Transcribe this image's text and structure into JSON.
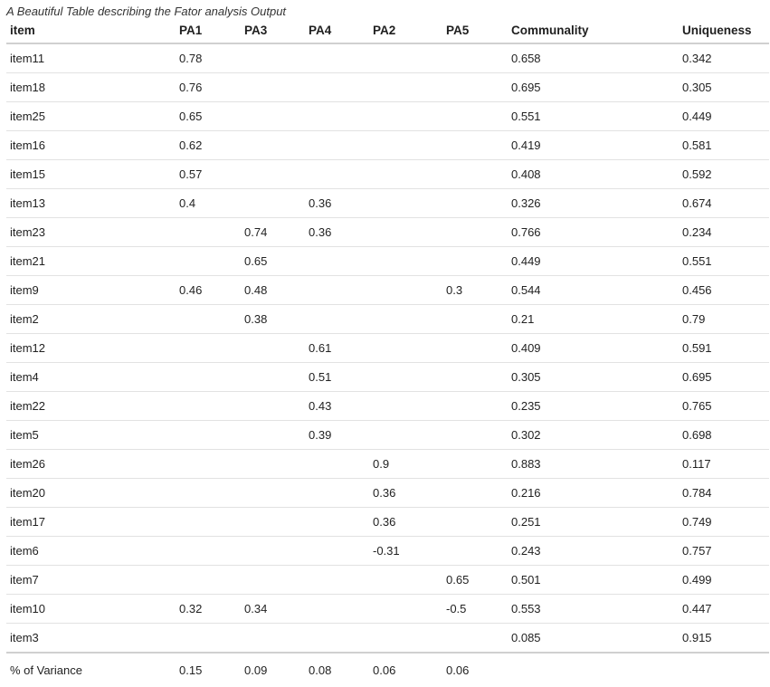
{
  "title": "A Beautiful Table describing the Fator analysis Output",
  "colors": {
    "background": "#ffffff",
    "text": "#222222",
    "header_rule": "#d0d0d0",
    "row_rule": "#e2e2e2"
  },
  "chart_data": {
    "type": "table",
    "title": "A Beautiful Table describing the Fator analysis Output",
    "columns": [
      "item",
      "PA1",
      "PA3",
      "PA4",
      "PA2",
      "PA5",
      "Communality",
      "Uniqueness"
    ],
    "rows": [
      [
        "item11",
        "0.78",
        "",
        "",
        "",
        "",
        "0.658",
        "0.342"
      ],
      [
        "item18",
        "0.76",
        "",
        "",
        "",
        "",
        "0.695",
        "0.305"
      ],
      [
        "item25",
        "0.65",
        "",
        "",
        "",
        "",
        "0.551",
        "0.449"
      ],
      [
        "item16",
        "0.62",
        "",
        "",
        "",
        "",
        "0.419",
        "0.581"
      ],
      [
        "item15",
        "0.57",
        "",
        "",
        "",
        "",
        "0.408",
        "0.592"
      ],
      [
        "item13",
        "0.4",
        "",
        "0.36",
        "",
        "",
        "0.326",
        "0.674"
      ],
      [
        "item23",
        "",
        "0.74",
        "0.36",
        "",
        "",
        "0.766",
        "0.234"
      ],
      [
        "item21",
        "",
        "0.65",
        "",
        "",
        "",
        "0.449",
        "0.551"
      ],
      [
        "item9",
        "0.46",
        "0.48",
        "",
        "",
        "0.3",
        "0.544",
        "0.456"
      ],
      [
        "item2",
        "",
        "0.38",
        "",
        "",
        "",
        "0.21",
        "0.79"
      ],
      [
        "item12",
        "",
        "",
        "0.61",
        "",
        "",
        "0.409",
        "0.591"
      ],
      [
        "item4",
        "",
        "",
        "0.51",
        "",
        "",
        "0.305",
        "0.695"
      ],
      [
        "item22",
        "",
        "",
        "0.43",
        "",
        "",
        "0.235",
        "0.765"
      ],
      [
        "item5",
        "",
        "",
        "0.39",
        "",
        "",
        "0.302",
        "0.698"
      ],
      [
        "item26",
        "",
        "",
        "",
        "0.9",
        "",
        "0.883",
        "0.117"
      ],
      [
        "item20",
        "",
        "",
        "",
        "0.36",
        "",
        "0.216",
        "0.784"
      ],
      [
        "item17",
        "",
        "",
        "",
        "0.36",
        "",
        "0.251",
        "0.749"
      ],
      [
        "item6",
        "",
        "",
        "",
        "-0.31",
        "",
        "0.243",
        "0.757"
      ],
      [
        "item7",
        "",
        "",
        "",
        "",
        "0.65",
        "0.501",
        "0.499"
      ],
      [
        "item10",
        "0.32",
        "0.34",
        "",
        "",
        "-0.5",
        "0.553",
        "0.447"
      ],
      [
        "item3",
        "",
        "",
        "",
        "",
        "",
        "0.085",
        "0.915"
      ]
    ],
    "footer_row": [
      "% of Variance",
      "0.15",
      "0.09",
      "0.08",
      "0.06",
      "0.06",
      "",
      ""
    ]
  }
}
